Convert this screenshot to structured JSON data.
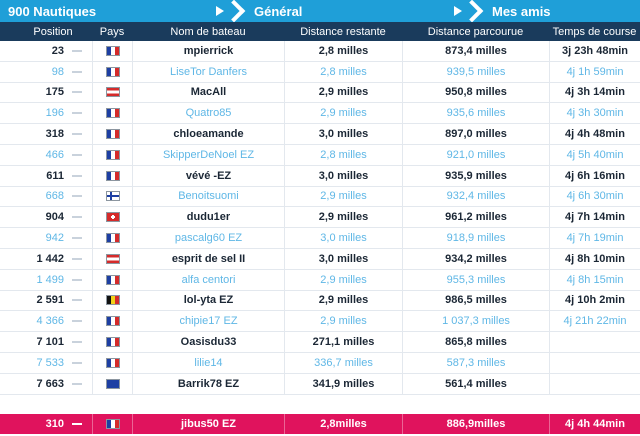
{
  "nav": {
    "title": "900 Nautiques",
    "general": "Général",
    "friends": "Mes amis"
  },
  "columns": {
    "position": "Position",
    "country": "Pays",
    "boat": "Nom de bateau",
    "remaining": "Distance restante",
    "covered": "Distance parcourue",
    "time": "Temps de course"
  },
  "rows": [
    {
      "pos": "23",
      "flag": "fr",
      "name": "mpierrick",
      "rem": "2,8 milles",
      "cov": "873,4 milles",
      "time": "3j 23h 48min",
      "friend": false
    },
    {
      "pos": "98",
      "flag": "fr",
      "name": "LiseTor Danfers",
      "rem": "2,8 milles",
      "cov": "939,5 milles",
      "time": "4j 1h 59min",
      "friend": true
    },
    {
      "pos": "175",
      "flag": "pf",
      "name": "MacAll",
      "rem": "2,9 milles",
      "cov": "950,8 milles",
      "time": "4j 3h 14min",
      "friend": false
    },
    {
      "pos": "196",
      "flag": "fr",
      "name": "Quatro85",
      "rem": "2,9 milles",
      "cov": "935,6 milles",
      "time": "4j 3h 30min",
      "friend": true
    },
    {
      "pos": "318",
      "flag": "fr",
      "name": "chloeamande",
      "rem": "3,0 milles",
      "cov": "897,0 milles",
      "time": "4j 4h 48min",
      "friend": false
    },
    {
      "pos": "466",
      "flag": "fr",
      "name": "SkipperDeNoel EZ",
      "rem": "2,8 milles",
      "cov": "921,0 milles",
      "time": "4j 5h 40min",
      "friend": true
    },
    {
      "pos": "611",
      "flag": "fr",
      "name": "vévé -EZ",
      "rem": "3,0 milles",
      "cov": "935,9 milles",
      "time": "4j 6h 16min",
      "friend": false
    },
    {
      "pos": "668",
      "flag": "fi",
      "name": "Benoitsuomi",
      "rem": "2,9 milles",
      "cov": "932,4 milles",
      "time": "4j 6h 30min",
      "friend": true
    },
    {
      "pos": "904",
      "flag": "ch",
      "name": "dudu1er",
      "rem": "2,9 milles",
      "cov": "961,2 milles",
      "time": "4j 7h 14min",
      "friend": false
    },
    {
      "pos": "942",
      "flag": "fr",
      "name": "pascalg60 EZ",
      "rem": "3,0 milles",
      "cov": "918,9 milles",
      "time": "4j 7h 19min",
      "friend": true
    },
    {
      "pos": "1 442",
      "flag": "pf",
      "name": "esprit de sel II",
      "rem": "3,0 milles",
      "cov": "934,2 milles",
      "time": "4j 8h 10min",
      "friend": false
    },
    {
      "pos": "1 499",
      "flag": "fr",
      "name": "alfa centori",
      "rem": "2,9 milles",
      "cov": "955,3 milles",
      "time": "4j 8h 15min",
      "friend": true
    },
    {
      "pos": "2 591",
      "flag": "be",
      "name": "lol-yta EZ",
      "rem": "2,9 milles",
      "cov": "986,5 milles",
      "time": "4j 10h 2min",
      "friend": false
    },
    {
      "pos": "4 366",
      "flag": "fr",
      "name": "chipie17 EZ",
      "rem": "2,9 milles",
      "cov": "1 037,3 milles",
      "time": "4j 21h 22min",
      "friend": true
    },
    {
      "pos": "7 101",
      "flag": "fr",
      "name": "Oasisdu33",
      "rem": "271,1 milles",
      "cov": "865,8 milles",
      "time": "",
      "friend": false
    },
    {
      "pos": "7 533",
      "flag": "fr",
      "name": "lilie14",
      "rem": "336,7 milles",
      "cov": "587,3 milles",
      "time": "",
      "friend": true
    },
    {
      "pos": "7 663",
      "flag": "eu",
      "name": "Barrik78 EZ",
      "rem": "341,9 milles",
      "cov": "561,4 milles",
      "time": "",
      "friend": false
    }
  ],
  "self": {
    "pos": "310",
    "flag": "fr",
    "name": "jibus50 EZ",
    "rem": "2,8milles",
    "cov": "886,9milles",
    "time": "4j 4h 44min"
  },
  "colors": {
    "nav_bg": "#1f9fd8",
    "header_bg": "#1a3b5c",
    "friend_text": "#5fb7e6",
    "self_bg": "#e0135d"
  }
}
